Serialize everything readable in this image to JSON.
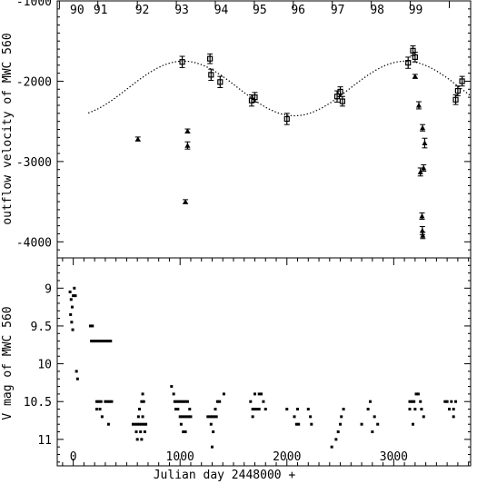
{
  "chart_data": [
    {
      "panel": "top",
      "type": "scatter",
      "ylabel": "outflow velocity of MWC 560",
      "ylim": [
        -4200,
        -1000
      ],
      "xlim": [
        -150,
        3720
      ],
      "yticks": [
        -1000,
        -2000,
        -3000,
        -4000
      ],
      "yticklabels": [
        "-1000",
        "-2000",
        "-3000",
        "-4000"
      ],
      "year_labels": [
        {
          "text": "90",
          "x": -150
        },
        {
          "text": "91",
          "x": 70
        },
        {
          "text": "92",
          "x": 460
        },
        {
          "text": "93",
          "x": 830
        },
        {
          "text": "94",
          "x": 1200
        },
        {
          "text": "95",
          "x": 1560
        },
        {
          "text": "96",
          "x": 1920
        },
        {
          "text": "97",
          "x": 2290
        },
        {
          "text": "98",
          "x": 2660
        },
        {
          "text": "99",
          "x": 3020
        }
      ],
      "year_ticks": [
        -130,
        230,
        600,
        965,
        1330,
        1695,
        2060,
        2425,
        2790,
        3155,
        3520
      ],
      "model_curve": {
        "style": "dotted",
        "mean": -2090,
        "amplitude": 340,
        "period": 2080,
        "peak_at": 1030,
        "x_range": [
          140,
          3720
        ]
      },
      "series": [
        {
          "marker": "triangle",
          "points": [
            {
              "x": 605,
              "y": -2720,
              "err": 25
            },
            {
              "x": 1050,
              "y": -3500,
              "err": 25
            },
            {
              "x": 1070,
              "y": -2800,
              "err": 45
            },
            {
              "x": 1070,
              "y": -2620,
              "err": 25
            },
            {
              "x": 3200,
              "y": -1940,
              "err": 25
            },
            {
              "x": 3235,
              "y": -2300,
              "err": 45
            },
            {
              "x": 3250,
              "y": -3130,
              "err": 50
            },
            {
              "x": 3270,
              "y": -2580,
              "err": 40
            },
            {
              "x": 3280,
              "y": -3080,
              "err": 40
            },
            {
              "x": 3290,
              "y": -2770,
              "err": 60
            },
            {
              "x": 3265,
              "y": -3680,
              "err": 40
            },
            {
              "x": 3268,
              "y": -3860,
              "err": 50
            },
            {
              "x": 3272,
              "y": -3920,
              "err": 40
            }
          ]
        },
        {
          "marker": "square",
          "points": [
            {
              "x": 1020,
              "y": -1760,
              "err": 70
            },
            {
              "x": 1280,
              "y": -1720,
              "err": 60
            },
            {
              "x": 1290,
              "y": -1920,
              "err": 70
            },
            {
              "x": 1375,
              "y": -2010,
              "err": 70
            },
            {
              "x": 1670,
              "y": -2240,
              "err": 70
            },
            {
              "x": 1700,
              "y": -2200,
              "err": 60
            },
            {
              "x": 2000,
              "y": -2470,
              "err": 70
            },
            {
              "x": 2470,
              "y": -2190,
              "err": 70
            },
            {
              "x": 2500,
              "y": -2130,
              "err": 60
            },
            {
              "x": 2520,
              "y": -2250,
              "err": 60
            },
            {
              "x": 3135,
              "y": -1770,
              "err": 70
            },
            {
              "x": 3180,
              "y": -1620,
              "err": 60
            },
            {
              "x": 3200,
              "y": -1700,
              "err": 60
            },
            {
              "x": 3580,
              "y": -2230,
              "err": 60
            },
            {
              "x": 3600,
              "y": -2120,
              "err": 60
            },
            {
              "x": 3640,
              "y": -2000,
              "err": 60
            }
          ]
        }
      ]
    },
    {
      "panel": "bottom",
      "type": "scatter",
      "ylabel": "V mag of MWC 560",
      "xlabel": "Julian day 2448000 +",
      "ylim": [
        11.35,
        8.6
      ],
      "xlim": [
        -150,
        3720
      ],
      "xticks": [
        0,
        1000,
        2000,
        3000
      ],
      "xticklabels": [
        "0",
        "1000",
        "2000",
        "3000"
      ],
      "yticks": [
        9,
        9.5,
        10,
        10.5,
        11
      ],
      "yticklabels": [
        "9",
        "9.5",
        "10",
        "10.5",
        "11"
      ],
      "points": [
        [
          -20,
          9.15
        ],
        [
          -10,
          9.25
        ],
        [
          -25,
          9.35
        ],
        [
          -15,
          9.45
        ],
        [
          -5,
          9.55
        ],
        [
          -30,
          9.05
        ],
        [
          10,
          9.0
        ],
        [
          0,
          9.1
        ],
        [
          20,
          9.1
        ],
        [
          30,
          10.1
        ],
        [
          40,
          10.2
        ],
        [
          160,
          9.5
        ],
        [
          180,
          9.5
        ],
        [
          170,
          9.7
        ],
        [
          190,
          9.7
        ],
        [
          210,
          9.7
        ],
        [
          230,
          9.7
        ],
        [
          250,
          9.7
        ],
        [
          270,
          9.7
        ],
        [
          290,
          9.7
        ],
        [
          310,
          9.7
        ],
        [
          330,
          9.7
        ],
        [
          350,
          9.7
        ],
        [
          220,
          10.5
        ],
        [
          240,
          10.5
        ],
        [
          260,
          10.5
        ],
        [
          220,
          10.6
        ],
        [
          250,
          10.6
        ],
        [
          270,
          10.7
        ],
        [
          300,
          10.5
        ],
        [
          320,
          10.5
        ],
        [
          340,
          10.5
        ],
        [
          360,
          10.5
        ],
        [
          330,
          10.8
        ],
        [
          560,
          10.8
        ],
        [
          580,
          10.8
        ],
        [
          600,
          10.8
        ],
        [
          620,
          10.8
        ],
        [
          640,
          10.8
        ],
        [
          660,
          10.8
        ],
        [
          680,
          10.8
        ],
        [
          590,
          10.9
        ],
        [
          630,
          10.9
        ],
        [
          670,
          10.9
        ],
        [
          610,
          10.7
        ],
        [
          650,
          10.7
        ],
        [
          620,
          10.6
        ],
        [
          640,
          10.5
        ],
        [
          660,
          10.5
        ],
        [
          600,
          11.0
        ],
        [
          640,
          11.0
        ],
        [
          650,
          10.4
        ],
        [
          920,
          10.3
        ],
        [
          940,
          10.4
        ],
        [
          950,
          10.5
        ],
        [
          970,
          10.5
        ],
        [
          990,
          10.5
        ],
        [
          1010,
          10.5
        ],
        [
          1030,
          10.5
        ],
        [
          1050,
          10.5
        ],
        [
          1070,
          10.5
        ],
        [
          960,
          10.6
        ],
        [
          980,
          10.6
        ],
        [
          1000,
          10.7
        ],
        [
          1020,
          10.7
        ],
        [
          1040,
          10.7
        ],
        [
          1060,
          10.7
        ],
        [
          1080,
          10.7
        ],
        [
          1100,
          10.7
        ],
        [
          1090,
          10.6
        ],
        [
          1010,
          10.8
        ],
        [
          1030,
          10.9
        ],
        [
          1050,
          10.9
        ],
        [
          1260,
          10.7
        ],
        [
          1280,
          10.7
        ],
        [
          1300,
          10.7
        ],
        [
          1320,
          10.7
        ],
        [
          1290,
          10.8
        ],
        [
          1310,
          10.9
        ],
        [
          1330,
          10.6
        ],
        [
          1350,
          10.5
        ],
        [
          1370,
          10.5
        ],
        [
          1340,
          10.7
        ],
        [
          1300,
          11.1
        ],
        [
          1410,
          10.4
        ],
        [
          1660,
          10.5
        ],
        [
          1680,
          10.6
        ],
        [
          1700,
          10.6
        ],
        [
          1720,
          10.6
        ],
        [
          1740,
          10.6
        ],
        [
          1700,
          10.4
        ],
        [
          1740,
          10.4
        ],
        [
          1760,
          10.4
        ],
        [
          1680,
          10.7
        ],
        [
          1780,
          10.5
        ],
        [
          1800,
          10.6
        ],
        [
          2000,
          10.6
        ],
        [
          2070,
          10.7
        ],
        [
          2100,
          10.6
        ],
        [
          2090,
          10.8
        ],
        [
          2110,
          10.8
        ],
        [
          2200,
          10.6
        ],
        [
          2220,
          10.7
        ],
        [
          2230,
          10.8
        ],
        [
          2420,
          11.1
        ],
        [
          2460,
          11.0
        ],
        [
          2480,
          10.9
        ],
        [
          2500,
          10.8
        ],
        [
          2510,
          10.7
        ],
        [
          2530,
          10.6
        ],
        [
          2700,
          10.8
        ],
        [
          2760,
          10.6
        ],
        [
          2780,
          10.5
        ],
        [
          2800,
          10.9
        ],
        [
          2820,
          10.7
        ],
        [
          2850,
          10.8
        ],
        [
          3150,
          10.5
        ],
        [
          3170,
          10.5
        ],
        [
          3190,
          10.5
        ],
        [
          3210,
          10.4
        ],
        [
          3230,
          10.4
        ],
        [
          3250,
          10.5
        ],
        [
          3260,
          10.6
        ],
        [
          3280,
          10.7
        ],
        [
          3200,
          10.6
        ],
        [
          3180,
          10.8
        ],
        [
          3150,
          10.6
        ],
        [
          3480,
          10.5
        ],
        [
          3500,
          10.5
        ],
        [
          3520,
          10.6
        ],
        [
          3540,
          10.5
        ],
        [
          3560,
          10.6
        ],
        [
          3580,
          10.5
        ],
        [
          3560,
          10.7
        ]
      ]
    }
  ]
}
